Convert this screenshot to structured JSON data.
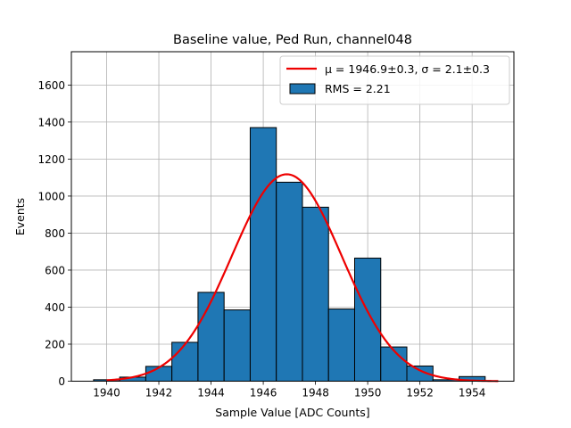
{
  "chart_data": {
    "type": "bar",
    "title": "Baseline value, Ped Run, channel048",
    "xlabel": "Sample Value [ADC Counts]",
    "ylabel": "Events",
    "xlim": [
      1938.65,
      1955.6
    ],
    "ylim": [
      0,
      1780
    ],
    "grid": true,
    "legend_position": "top-right",
    "bar_color": "#1f77b4",
    "fit_color": "#ee0000",
    "x_ticks": [
      1940,
      1942,
      1944,
      1946,
      1948,
      1950,
      1952,
      1954
    ],
    "y_ticks": [
      0,
      200,
      400,
      600,
      800,
      1000,
      1200,
      1400,
      1600
    ],
    "bins": [
      {
        "left": 1939.5,
        "right": 1940.5,
        "count": 8
      },
      {
        "left": 1940.5,
        "right": 1941.5,
        "count": 22
      },
      {
        "left": 1941.5,
        "right": 1942.5,
        "count": 80
      },
      {
        "left": 1942.5,
        "right": 1943.5,
        "count": 210
      },
      {
        "left": 1943.5,
        "right": 1944.5,
        "count": 480
      },
      {
        "left": 1944.5,
        "right": 1945.5,
        "count": 385
      },
      {
        "left": 1945.5,
        "right": 1946.5,
        "count": 1370
      },
      {
        "left": 1946.5,
        "right": 1947.5,
        "count": 1075
      },
      {
        "left": 1947.5,
        "right": 1948.5,
        "count": 940
      },
      {
        "left": 1948.5,
        "right": 1949.5,
        "count": 390
      },
      {
        "left": 1949.5,
        "right": 1950.5,
        "count": 665
      },
      {
        "left": 1950.5,
        "right": 1951.5,
        "count": 185
      },
      {
        "left": 1951.5,
        "right": 1952.5,
        "count": 82
      },
      {
        "left": 1952.5,
        "right": 1953.5,
        "count": 8
      },
      {
        "left": 1953.5,
        "right": 1954.5,
        "count": 25
      },
      {
        "left": 1954.5,
        "right": 1955.5,
        "count": 0
      }
    ],
    "fit": {
      "function": "gaussian",
      "amplitude": 1118,
      "mu": 1946.9,
      "sigma": 2.1,
      "x_range": [
        1940,
        1955
      ]
    },
    "legend": {
      "fit_label": "μ = 1946.9±0.3, σ = 2.1±0.3",
      "hist_label": "RMS = 2.21"
    }
  }
}
